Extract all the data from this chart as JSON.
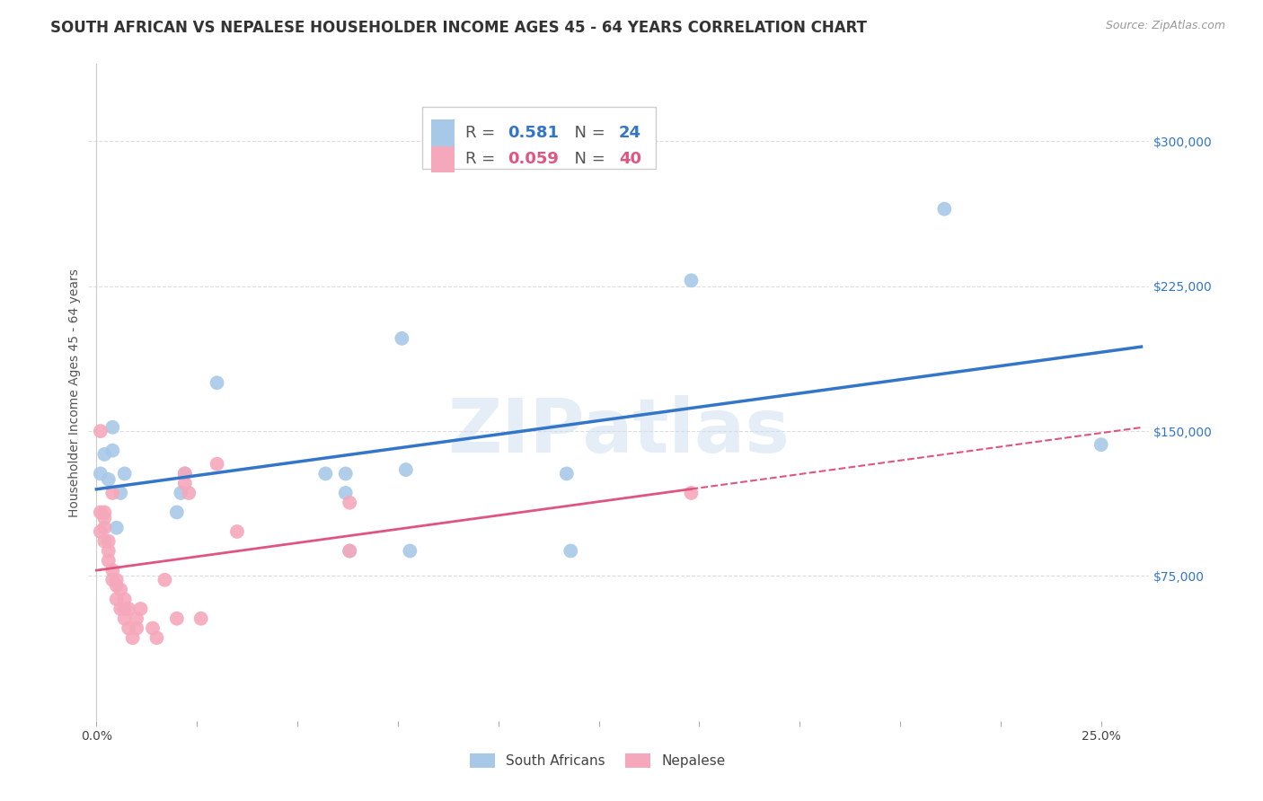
{
  "title": "SOUTH AFRICAN VS NEPALESE HOUSEHOLDER INCOME AGES 45 - 64 YEARS CORRELATION CHART",
  "source": "Source: ZipAtlas.com",
  "ylabel": "Householder Income Ages 45 - 64 years",
  "xlim": [
    -0.002,
    0.262
  ],
  "ylim": [
    0,
    340000
  ],
  "blue_R": 0.581,
  "blue_N": 24,
  "pink_R": 0.059,
  "pink_N": 40,
  "blue_color": "#a8c8e8",
  "blue_line_color": "#3375c8",
  "pink_color": "#f5a8bc",
  "pink_line_color": "#e05580",
  "blue_points_x": [
    0.001,
    0.002,
    0.003,
    0.004,
    0.004,
    0.005,
    0.006,
    0.007,
    0.02,
    0.021,
    0.022,
    0.03,
    0.057,
    0.062,
    0.062,
    0.063,
    0.076,
    0.077,
    0.078,
    0.117,
    0.118,
    0.148,
    0.211,
    0.25
  ],
  "blue_points_y": [
    128000,
    138000,
    125000,
    140000,
    152000,
    100000,
    118000,
    128000,
    108000,
    118000,
    128000,
    175000,
    128000,
    128000,
    118000,
    88000,
    198000,
    130000,
    88000,
    128000,
    88000,
    228000,
    265000,
    143000
  ],
  "pink_points_x": [
    0.001,
    0.001,
    0.001,
    0.002,
    0.002,
    0.002,
    0.002,
    0.003,
    0.003,
    0.003,
    0.004,
    0.004,
    0.004,
    0.005,
    0.005,
    0.005,
    0.006,
    0.006,
    0.007,
    0.007,
    0.007,
    0.008,
    0.008,
    0.009,
    0.01,
    0.01,
    0.011,
    0.014,
    0.015,
    0.017,
    0.02,
    0.022,
    0.022,
    0.023,
    0.026,
    0.03,
    0.035,
    0.063,
    0.063,
    0.148
  ],
  "pink_points_y": [
    150000,
    98000,
    108000,
    93000,
    100000,
    105000,
    108000,
    83000,
    88000,
    93000,
    73000,
    78000,
    118000,
    63000,
    70000,
    73000,
    58000,
    68000,
    53000,
    58000,
    63000,
    48000,
    58000,
    43000,
    48000,
    53000,
    58000,
    48000,
    43000,
    73000,
    53000,
    123000,
    128000,
    118000,
    53000,
    133000,
    98000,
    88000,
    113000,
    118000
  ],
  "ytick_values": [
    75000,
    150000,
    225000,
    300000
  ],
  "ytick_labels": [
    "$75,000",
    "$150,000",
    "$225,000",
    "$300,000"
  ],
  "xtick_positions": [
    0.0,
    0.25
  ],
  "xtick_labels": [
    "0.0%",
    "25.0%"
  ],
  "watermark_text": "ZIPatlas",
  "background_color": "#ffffff",
  "grid_color": "#dddddd",
  "title_fontsize": 12,
  "axis_label_fontsize": 10,
  "tick_fontsize": 10,
  "legend_fontsize": 13
}
